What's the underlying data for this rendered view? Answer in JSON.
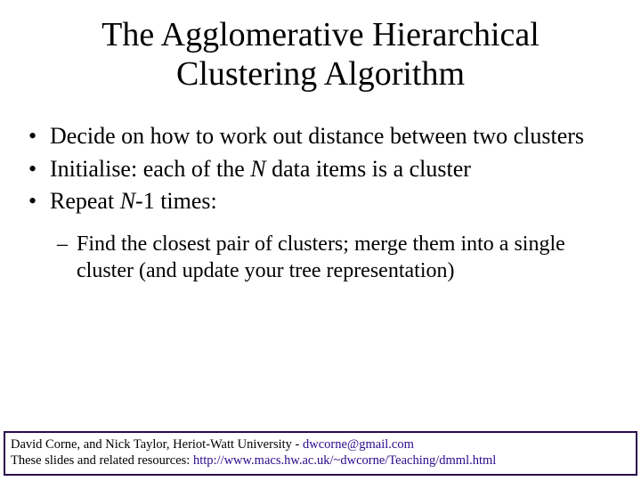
{
  "slide": {
    "background_color": "#ffffff",
    "text_color": "#000000",
    "font_family": "Times New Roman",
    "title": {
      "line1": "The Agglomerative Hierarchical",
      "line2": "Clustering Algorithm",
      "fontsize": 38,
      "align": "center"
    },
    "bullets": {
      "fontsize": 26,
      "items": [
        {
          "text_before": "Decide on how to work out distance between two clusters"
        },
        {
          "text_before": "Initialise: each of the ",
          "italic": "N",
          "text_after": " data items is a cluster"
        },
        {
          "text_before": "Repeat ",
          "italic": "N",
          "text_after": "-1 times:"
        }
      ],
      "sub": {
        "fontsize": 24,
        "items": [
          {
            "text": "Find the closest pair of clusters; merge them into a single cluster (and update your tree representation)"
          }
        ]
      }
    },
    "footer": {
      "border_color": "#2a0a4a",
      "fontsize": 14.5,
      "line1_pre": "David Corne, and Nick Taylor,  Heriot-Watt University  -  ",
      "line1_link": "dwcorne@gmail.com",
      "line2_pre": "These slides and related resources:   ",
      "line2_link": "http://www.macs.hw.ac.uk/~dwcorne/Teaching/dmml.html",
      "link_color": "#2a0a8a"
    }
  }
}
